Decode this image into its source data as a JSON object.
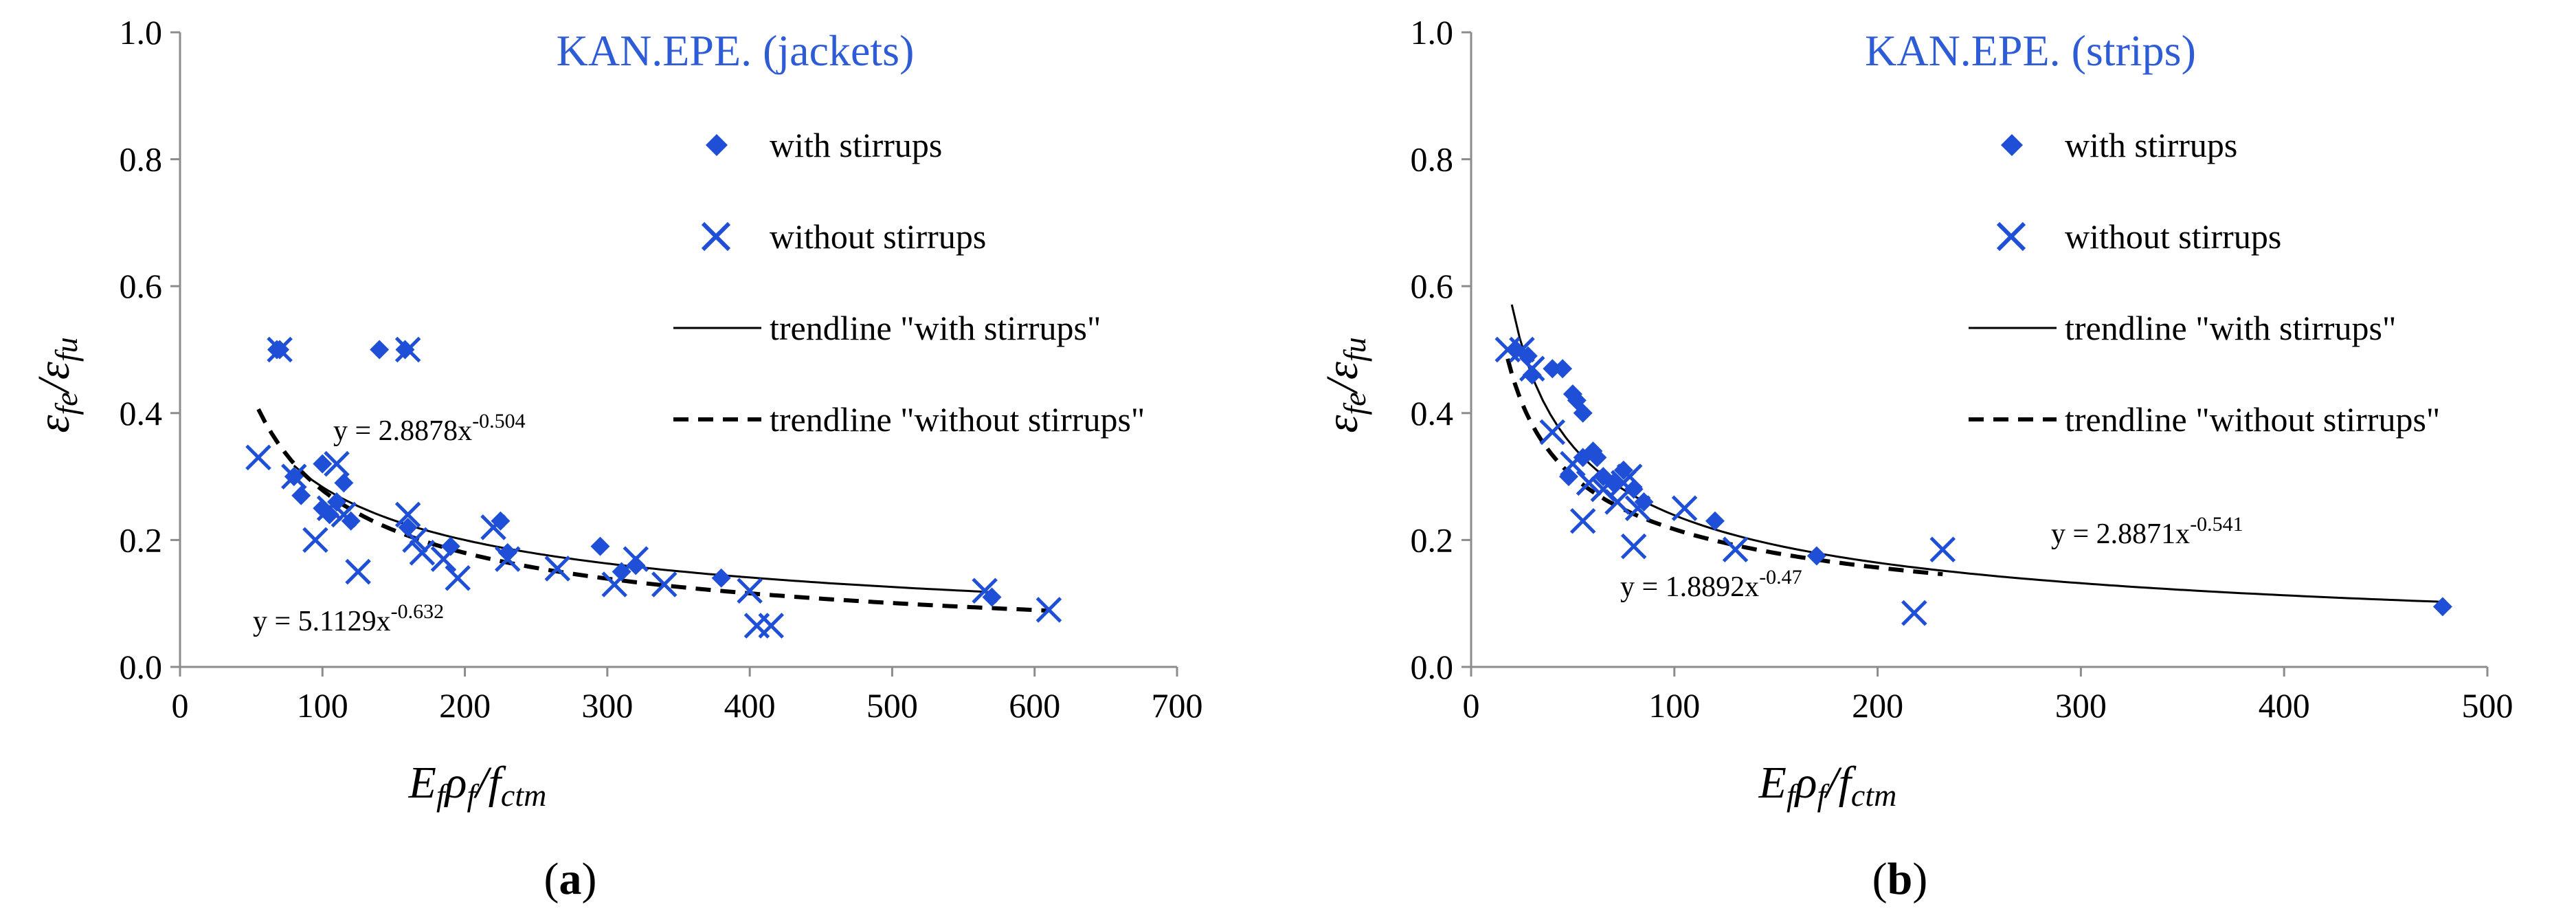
{
  "colors": {
    "marker": "#1F4FD6",
    "title": "#2E5BD6",
    "axis": "#8C8C8C",
    "trend": "#000000"
  },
  "legend_icons": {
    "with": "diamond-marker",
    "without": "x-marker",
    "trend_with": "solid-line",
    "trend_without": "dashed-line"
  },
  "chart_data": [
    {
      "type": "scatter",
      "panel_label": {
        "open": "(",
        "letter": "a",
        "close": ")"
      },
      "title": "KAN.EPE. (jackets)",
      "xlabel": {
        "E": "E",
        "f1": "f",
        "rho": "ρ",
        "f2": "f",
        "slash": "/f",
        "ctm": "ctm"
      },
      "ylabel": {
        "eps1": "ε",
        "fe": "fe",
        "slash": "/ε",
        "fu": "fu"
      },
      "xlim": [
        0,
        700
      ],
      "ylim": [
        0,
        1.0
      ],
      "xticks": [
        "0",
        "100",
        "200",
        "300",
        "400",
        "500",
        "600",
        "700"
      ],
      "yticks": [
        "0.0",
        "0.2",
        "0.4",
        "0.6",
        "0.8",
        "1.0"
      ],
      "legend": {
        "with_stirrups": "with stirrups",
        "without_stirrups": "without stirrups",
        "trend_with": "trendline \"with stirrups\"",
        "trend_without": "trendline \"without stirrups\""
      },
      "series": [
        {
          "name": "with stirrups",
          "marker": "diamond",
          "points": [
            [
              68,
              0.5
            ],
            [
              70,
              0.5
            ],
            [
              140,
              0.5
            ],
            [
              158,
              0.5
            ],
            [
              80,
              0.3
            ],
            [
              85,
              0.27
            ],
            [
              100,
              0.25
            ],
            [
              100,
              0.32
            ],
            [
              105,
              0.24
            ],
            [
              110,
              0.26
            ],
            [
              115,
              0.29
            ],
            [
              120,
              0.23
            ],
            [
              160,
              0.22
            ],
            [
              190,
              0.19
            ],
            [
              225,
              0.23
            ],
            [
              230,
              0.18
            ],
            [
              295,
              0.19
            ],
            [
              310,
              0.15
            ],
            [
              320,
              0.16
            ],
            [
              380,
              0.14
            ],
            [
              570,
              0.11
            ]
          ]
        },
        {
          "name": "without stirrups",
          "marker": "x",
          "points": [
            [
              70,
              0.5
            ],
            [
              160,
              0.5
            ],
            [
              55,
              0.33
            ],
            [
              80,
              0.3
            ],
            [
              95,
              0.2
            ],
            [
              105,
              0.25
            ],
            [
              110,
              0.32
            ],
            [
              115,
              0.24
            ],
            [
              125,
              0.15
            ],
            [
              160,
              0.24
            ],
            [
              165,
              0.2
            ],
            [
              170,
              0.18
            ],
            [
              185,
              0.17
            ],
            [
              195,
              0.14
            ],
            [
              220,
              0.22
            ],
            [
              230,
              0.17
            ],
            [
              265,
              0.155
            ],
            [
              305,
              0.13
            ],
            [
              320,
              0.17
            ],
            [
              340,
              0.13
            ],
            [
              400,
              0.12
            ],
            [
              405,
              0.065
            ],
            [
              415,
              0.065
            ],
            [
              565,
              0.12
            ],
            [
              610,
              0.09
            ]
          ]
        }
      ],
      "trendlines": [
        {
          "name": "trendline \"with stirrups\"",
          "style": "solid",
          "a": 2.8878,
          "b": -0.504,
          "range": [
            80,
            570
          ],
          "equation": {
            "prefix": "y = 2.8878x",
            "exp": "-0.504"
          }
        },
        {
          "name": "trendline \"without stirrups\"",
          "style": "dashed",
          "a": 5.1129,
          "b": -0.632,
          "range": [
            55,
            610
          ],
          "equation": {
            "prefix": "y = 5.1129x",
            "exp": "-0.632"
          }
        }
      ]
    },
    {
      "type": "scatter",
      "panel_label": {
        "open": "(",
        "letter": "b",
        "close": ")"
      },
      "title": "KAN.EPE. (strips)",
      "xlabel": {
        "E": "E",
        "f1": "f",
        "rho": "ρ",
        "f2": "f",
        "slash": "/f",
        "ctm": "ctm"
      },
      "ylabel": {
        "eps1": "ε",
        "fe": "fe",
        "slash": "/ε",
        "fu": "fu"
      },
      "xlim": [
        0,
        500
      ],
      "ylim": [
        0,
        1.0
      ],
      "xticks": [
        "0",
        "100",
        "200",
        "300",
        "400",
        "500"
      ],
      "yticks": [
        "0.0",
        "0.2",
        "0.4",
        "0.6",
        "0.8",
        "1.0"
      ],
      "legend": {
        "with_stirrups": "with stirrups",
        "without_stirrups": "without stirrups",
        "trend_with": "trendline \"with stirrups\"",
        "trend_without": "trendline \"without stirrups\""
      },
      "series": [
        {
          "name": "with stirrups",
          "marker": "diamond",
          "points": [
            [
              22,
              0.5
            ],
            [
              28,
              0.49
            ],
            [
              30,
              0.46
            ],
            [
              40,
              0.47
            ],
            [
              45,
              0.47
            ],
            [
              50,
              0.43
            ],
            [
              52,
              0.42
            ],
            [
              55,
              0.4
            ],
            [
              48,
              0.3
            ],
            [
              55,
              0.33
            ],
            [
              60,
              0.34
            ],
            [
              62,
              0.33
            ],
            [
              65,
              0.3
            ],
            [
              70,
              0.29
            ],
            [
              75,
              0.31
            ],
            [
              80,
              0.28
            ],
            [
              85,
              0.26
            ],
            [
              120,
              0.23
            ],
            [
              170,
              0.175
            ],
            [
              478,
              0.095
            ]
          ]
        },
        {
          "name": "without stirrups",
          "marker": "x",
          "points": [
            [
              18,
              0.5
            ],
            [
              25,
              0.5
            ],
            [
              30,
              0.47
            ],
            [
              40,
              0.37
            ],
            [
              50,
              0.32
            ],
            [
              55,
              0.23
            ],
            [
              58,
              0.29
            ],
            [
              65,
              0.28
            ],
            [
              72,
              0.26
            ],
            [
              75,
              0.29
            ],
            [
              78,
              0.3
            ],
            [
              80,
              0.19
            ],
            [
              82,
              0.25
            ],
            [
              105,
              0.25
            ],
            [
              130,
              0.185
            ],
            [
              218,
              0.085
            ],
            [
              232,
              0.185
            ]
          ]
        }
      ],
      "trendlines": [
        {
          "name": "trendline \"with stirrups\"",
          "style": "solid",
          "a": 2.8871,
          "b": -0.541,
          "range": [
            20,
            478
          ],
          "equation": {
            "prefix": "y = 2.8871x",
            "exp": "-0.541"
          }
        },
        {
          "name": "trendline \"without stirrups\"",
          "style": "dashed",
          "a": 1.8892,
          "b": -0.47,
          "range": [
            18,
            232
          ],
          "equation": {
            "prefix": "y = 1.8892x",
            "exp": "-0.47"
          }
        }
      ]
    }
  ]
}
